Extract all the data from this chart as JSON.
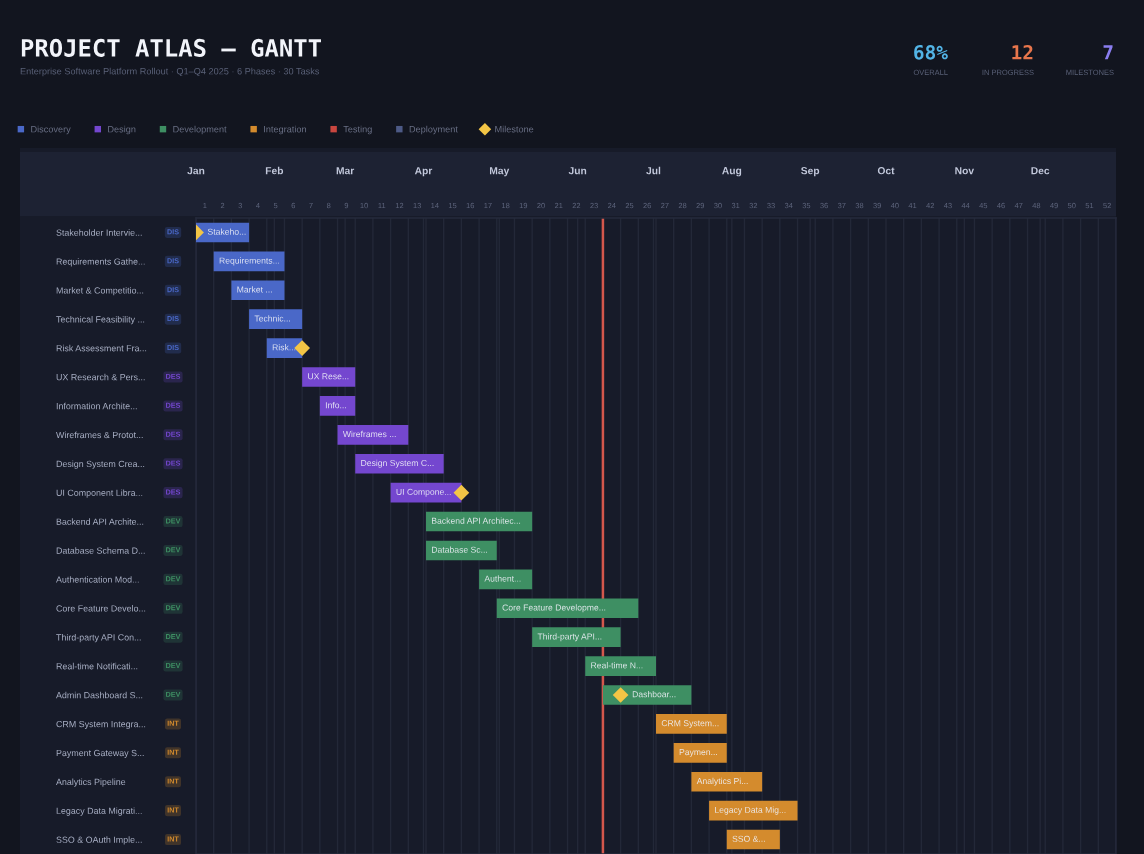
{
  "chart_data": {
    "type": "bar",
    "orientation": "horizontal",
    "title": "PROJECT ATLAS — GANTT",
    "subtitle": "Enterprise Software Platform Rollout · Q1–Q4 2025 · 6 Phases · 30 Tasks",
    "annotations": [
      "68%",
      "OVERALL",
      "12",
      "IN PROGRESS",
      "7",
      "MILESTONES"
    ],
    "categories": [
      "Stakeholder Intervie...",
      "Requirements Gathe...",
      "Market & Competitio...",
      "Technical Feasibility ...",
      "Risk Assessment Fra...",
      "UX Research & Pers...",
      "Information Archite...",
      "Wireframes & Protot...",
      "Design System Crea...",
      "UI Component Libra...",
      "Backend API Archite...",
      "Database Schema D...",
      "Authentication Mod...",
      "Core Feature Develo...",
      "Third-party API Con...",
      "Real-time Notificati...",
      "Admin Dashboard S...",
      "CRM System Integra...",
      "Payment Gateway S...",
      "Analytics Pipeline",
      "Legacy Data Migrati...",
      "SSO & OAuth Imple..."
    ],
    "y2_categories": [
      "DIS",
      "DIS",
      "DIS",
      "DIS",
      "DIS",
      "DES",
      "DES",
      "DES",
      "DES",
      "DES",
      "DEV",
      "DEV",
      "DEV",
      "DEV",
      "DEV",
      "DEV",
      "DEV",
      "INT",
      "INT",
      "INT",
      "INT",
      "INT"
    ],
    "series": [
      {
        "name": "Discovery",
        "color": "#4a68c8",
        "base": [
          0.5,
          1.5,
          2.5,
          3.5,
          4.5,
          null,
          null,
          null,
          null,
          null,
          null,
          null,
          null,
          null,
          null,
          null,
          null,
          null,
          null,
          null,
          null,
          null
        ],
        "values": [
          3,
          4,
          3,
          3,
          2,
          null,
          null,
          null,
          null,
          null,
          null,
          null,
          null,
          null,
          null,
          null,
          null,
          null,
          null,
          null,
          null,
          null
        ],
        "value_labels": [
          "Stakeho...",
          "Requirements...",
          "Market ...",
          "Technic...",
          "Risk...",
          null,
          null,
          null,
          null,
          null,
          null,
          null,
          null,
          null,
          null,
          null,
          null,
          null,
          null,
          null,
          null,
          null
        ]
      },
      {
        "name": "Design",
        "color": "#7447cf",
        "base": [
          null,
          null,
          null,
          null,
          null,
          6.5,
          7.5,
          8.5,
          9.5,
          11.5,
          null,
          null,
          null,
          null,
          null,
          null,
          null,
          null,
          null,
          null,
          null,
          null
        ],
        "values": [
          null,
          null,
          null,
          null,
          null,
          3,
          2,
          4,
          5,
          4,
          null,
          null,
          null,
          null,
          null,
          null,
          null,
          null,
          null,
          null,
          null,
          null
        ],
        "value_labels": [
          null,
          null,
          null,
          null,
          null,
          "UX Rese...",
          "Info...",
          "Wireframes ...",
          "Design System C...",
          "UI Compone...",
          null,
          null,
          null,
          null,
          null,
          null,
          null,
          null,
          null,
          null,
          null,
          null
        ]
      },
      {
        "name": "Development",
        "color": "#3e8f63",
        "base": [
          null,
          null,
          null,
          null,
          null,
          null,
          null,
          null,
          null,
          null,
          13.5,
          13.5,
          16.5,
          17.5,
          19.5,
          22.5,
          23.5,
          null,
          null,
          null,
          null,
          null
        ],
        "values": [
          null,
          null,
          null,
          null,
          null,
          null,
          null,
          null,
          null,
          null,
          6,
          4,
          3,
          8,
          5,
          4,
          5,
          null,
          null,
          null,
          null,
          null
        ],
        "value_labels": [
          null,
          null,
          null,
          null,
          null,
          null,
          null,
          null,
          null,
          null,
          "Backend API Architec...",
          "Database Sc...",
          "Authent...",
          "Core Feature Developme...",
          "Third-party API...",
          "Real-time N...",
          "Dashboar...",
          null,
          null,
          null,
          null,
          null
        ]
      },
      {
        "name": "Integration",
        "color": "#d48b2d",
        "base": [
          null,
          null,
          null,
          null,
          null,
          null,
          null,
          null,
          null,
          null,
          null,
          null,
          null,
          null,
          null,
          null,
          null,
          26.5,
          27.5,
          28.5,
          29.5,
          30.5
        ],
        "values": [
          null,
          null,
          null,
          null,
          null,
          null,
          null,
          null,
          null,
          null,
          null,
          null,
          null,
          null,
          null,
          null,
          null,
          4,
          3,
          4,
          5,
          3
        ],
        "value_labels": [
          null,
          null,
          null,
          null,
          null,
          null,
          null,
          null,
          null,
          null,
          null,
          null,
          null,
          null,
          null,
          null,
          null,
          "CRM System...",
          "Paymen...",
          "Analytics Pi...",
          "Legacy Data Mig...",
          "SSO &..."
        ]
      },
      {
        "name": "Testing",
        "color": "#c9463f",
        "values": [
          null,
          null,
          null,
          null,
          null,
          null,
          null,
          null,
          null,
          null,
          null,
          null,
          null,
          null,
          null,
          null,
          null,
          null,
          null,
          null,
          null,
          null
        ]
      },
      {
        "name": "Deployment",
        "color": "#4d5a86",
        "values": [
          null,
          null,
          null,
          null,
          null,
          null,
          null,
          null,
          null,
          null,
          null,
          null,
          null,
          null,
          null,
          null,
          null,
          null,
          null,
          null,
          null,
          null
        ]
      },
      {
        "name": "Milestone",
        "type": "scatter",
        "marker": "diamond",
        "color": "#f3c545",
        "values": [
          0.5,
          null,
          null,
          null,
          6.5,
          null,
          null,
          null,
          null,
          15.5,
          null,
          null,
          null,
          null,
          null,
          null,
          24.5,
          null,
          null,
          null,
          null,
          null
        ]
      }
    ],
    "xlim": [
      0.5,
      52.5
    ],
    "xticks": [
      1,
      2,
      3,
      4,
      5,
      6,
      7,
      8,
      9,
      10,
      11,
      12,
      13,
      14,
      15,
      16,
      17,
      18,
      19,
      20,
      21,
      22,
      23,
      24,
      25,
      26,
      27,
      28,
      29,
      30,
      31,
      32,
      33,
      34,
      35,
      36,
      37,
      38,
      39,
      40,
      41,
      42,
      43,
      44,
      45,
      46,
      47,
      48,
      49,
      50,
      51,
      52
    ],
    "x2lim": [
      "2025-01-01",
      "2025-12-31"
    ],
    "x2ticks": [
      {
        "value": "2025-01-01",
        "label": "Jan"
      },
      {
        "value": "2025-01-08",
        "label": null
      },
      {
        "value": "2025-01-15",
        "label": null
      },
      {
        "value": "2025-01-22",
        "label": null
      },
      {
        "value": "2025-01-29",
        "label": null
      },
      {
        "value": "2025-02-01",
        "label": "Feb"
      },
      {
        "value": "2025-02-05",
        "label": null
      },
      {
        "value": "2025-02-12",
        "label": null
      },
      {
        "value": "2025-02-19",
        "label": null
      },
      {
        "value": "2025-02-26",
        "label": null
      },
      {
        "value": "2025-03-01",
        "label": "Mar"
      },
      {
        "value": "2025-03-05",
        "label": null
      },
      {
        "value": "2025-03-12",
        "label": null
      },
      {
        "value": "2025-03-19",
        "label": null
      },
      {
        "value": "2025-03-26",
        "label": null
      },
      {
        "value": "2025-04-01",
        "label": "Apr"
      },
      {
        "value": "2025-04-02",
        "label": null
      },
      {
        "value": "2025-04-09",
        "label": null
      },
      {
        "value": "2025-04-16",
        "label": null
      },
      {
        "value": "2025-04-23",
        "label": null
      },
      {
        "value": "2025-04-30",
        "label": null
      },
      {
        "value": "2025-05-01",
        "label": "May"
      },
      {
        "value": "2025-05-07",
        "label": null
      },
      {
        "value": "2025-05-14",
        "label": null
      },
      {
        "value": "2025-05-21",
        "label": null
      },
      {
        "value": "2025-05-28",
        "label": null
      },
      {
        "value": "2025-06-01",
        "label": "Jun"
      },
      {
        "value": "2025-06-04",
        "label": null
      },
      {
        "value": "2025-06-11",
        "label": null
      },
      {
        "value": "2025-06-18",
        "label": null
      },
      {
        "value": "2025-06-25",
        "label": null
      },
      {
        "value": "2025-07-01",
        "label": "Jul"
      },
      {
        "value": "2025-07-02",
        "label": null
      },
      {
        "value": "2025-07-09",
        "label": null
      },
      {
        "value": "2025-07-16",
        "label": null
      },
      {
        "value": "2025-07-23",
        "label": null
      },
      {
        "value": "2025-07-30",
        "label": null
      },
      {
        "value": "2025-08-01",
        "label": "Aug"
      },
      {
        "value": "2025-08-06",
        "label": null
      },
      {
        "value": "2025-08-13",
        "label": null
      },
      {
        "value": "2025-08-20",
        "label": null
      },
      {
        "value": "2025-08-27",
        "label": null
      },
      {
        "value": "2025-09-01",
        "label": "Sep"
      },
      {
        "value": "2025-09-03",
        "label": null
      },
      {
        "value": "2025-09-10",
        "label": null
      },
      {
        "value": "2025-09-17",
        "label": null
      },
      {
        "value": "2025-09-24",
        "label": null
      },
      {
        "value": "2025-10-01",
        "label": "Oct"
      },
      {
        "value": "2025-10-08",
        "label": null
      },
      {
        "value": "2025-10-15",
        "label": null
      },
      {
        "value": "2025-10-22",
        "label": null
      },
      {
        "value": "2025-10-29",
        "label": null
      },
      {
        "value": "2025-11-01",
        "label": "Nov"
      },
      {
        "value": "2025-11-05",
        "label": null
      },
      {
        "value": "2025-11-12",
        "label": null
      },
      {
        "value": "2025-11-19",
        "label": null
      },
      {
        "value": "2025-11-26",
        "label": null
      },
      {
        "value": "2025-12-01",
        "label": "Dec"
      },
      {
        "value": "2025-12-03",
        "label": null
      },
      {
        "value": "2025-12-10",
        "label": null
      },
      {
        "value": "2025-12-17",
        "label": null
      },
      {
        "value": "2025-12-24",
        "label": null
      },
      {
        "value": "2025-12-31",
        "label": null
      }
    ],
    "ref_lines": [
      {
        "axis": "x",
        "value": 23.5,
        "color": "#d4574c"
      }
    ],
    "grid": "x",
    "legend": "top left"
  }
}
